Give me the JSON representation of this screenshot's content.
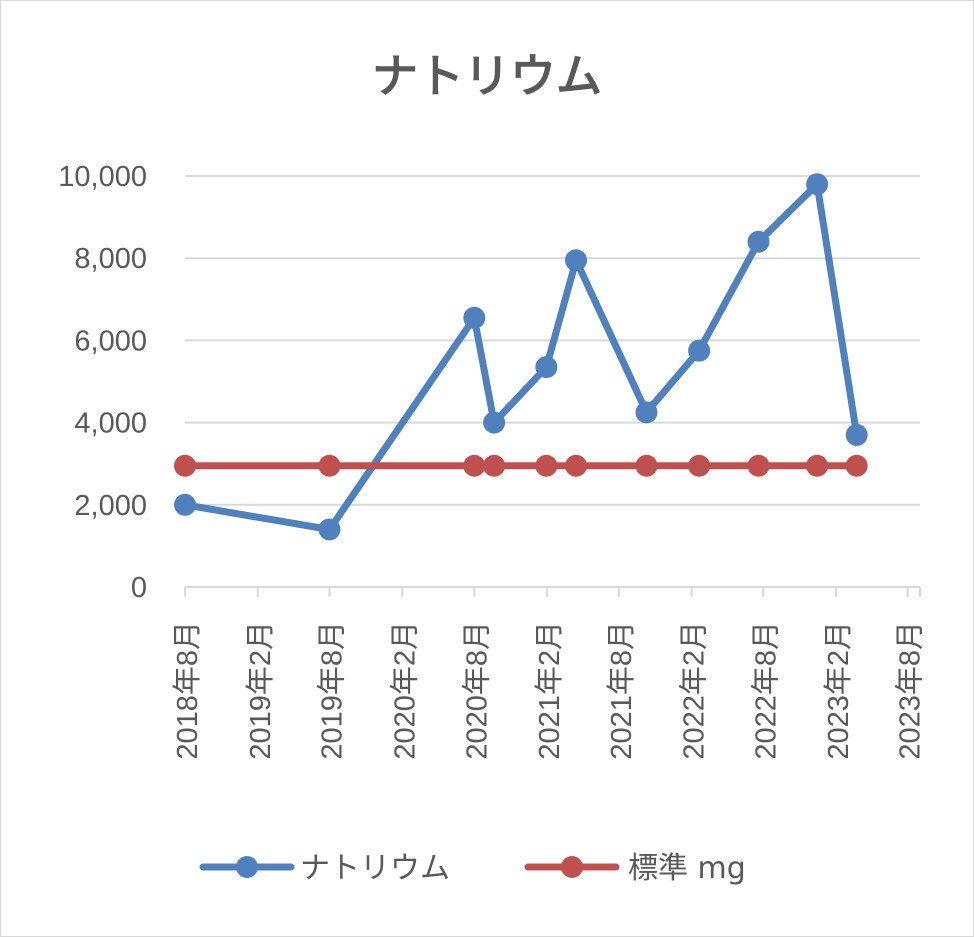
{
  "chart_data": {
    "type": "line",
    "title": "ナトリウム",
    "ylim": [
      0,
      10000
    ],
    "y_ticks": [
      "0",
      "2,000",
      "4,000",
      "6,000",
      "8,000",
      "10,000"
    ],
    "x_tick_labels": [
      "2018年8月",
      "2019年2月",
      "2019年8月",
      "2020年2月",
      "2020年8月",
      "2021年2月",
      "2021年8月",
      "2022年2月",
      "2022年8月",
      "2023年2月",
      "2023年8月"
    ],
    "x_range": [
      "2018-08-01",
      "2023-09-01"
    ],
    "grid": true,
    "legend": "bottom",
    "series": [
      {
        "name": "ナトリウム",
        "color": "#4E81BD",
        "points": [
          {
            "x": "2018-08-01",
            "y": 2000
          },
          {
            "x": "2019-08-01",
            "y": 1400
          },
          {
            "x": "2020-08-01",
            "y": 6550
          },
          {
            "x": "2020-09-20",
            "y": 4000
          },
          {
            "x": "2021-01-30",
            "y": 5350
          },
          {
            "x": "2021-04-15",
            "y": 7950
          },
          {
            "x": "2021-10-10",
            "y": 4250
          },
          {
            "x": "2022-02-20",
            "y": 5750
          },
          {
            "x": "2022-07-20",
            "y": 8400
          },
          {
            "x": "2022-12-15",
            "y": 9800
          },
          {
            "x": "2023-03-25",
            "y": 3700
          }
        ]
      },
      {
        "name": "標準 mg",
        "color": "#C0504D",
        "points": [
          {
            "x": "2018-08-01",
            "y": 2950
          },
          {
            "x": "2019-08-01",
            "y": 2950
          },
          {
            "x": "2020-08-01",
            "y": 2950
          },
          {
            "x": "2020-09-20",
            "y": 2950
          },
          {
            "x": "2021-01-30",
            "y": 2950
          },
          {
            "x": "2021-04-15",
            "y": 2950
          },
          {
            "x": "2021-10-10",
            "y": 2950
          },
          {
            "x": "2022-02-20",
            "y": 2950
          },
          {
            "x": "2022-07-20",
            "y": 2950
          },
          {
            "x": "2022-12-15",
            "y": 2950
          },
          {
            "x": "2023-03-25",
            "y": 2950
          }
        ]
      }
    ]
  }
}
